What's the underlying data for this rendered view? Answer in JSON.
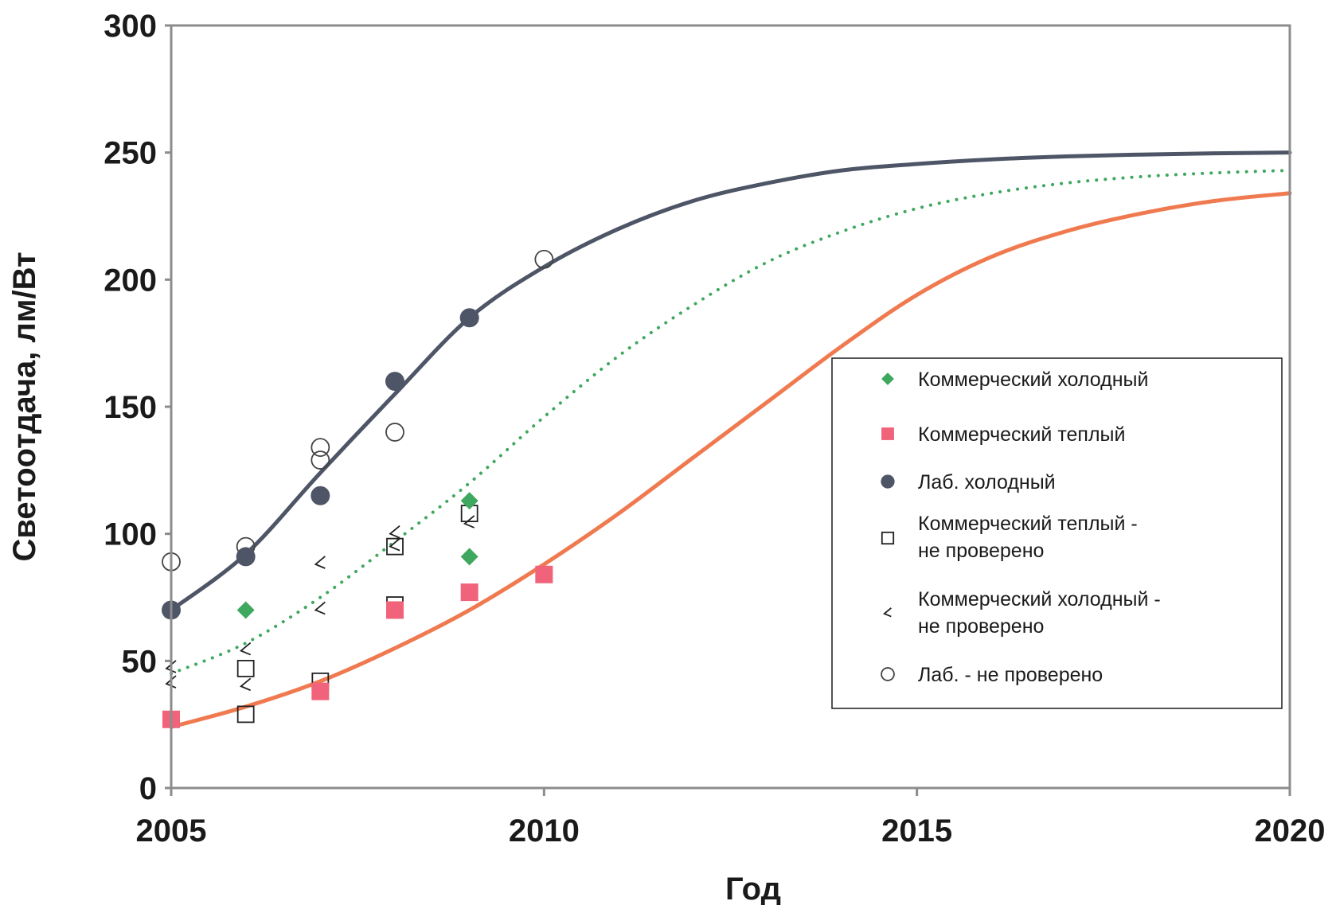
{
  "chart_data": {
    "type": "scatter",
    "title": "",
    "xlabel": "Год",
    "ylabel": "Светоотдача, лм/Вт",
    "xlim": [
      2005,
      2020
    ],
    "ylim": [
      0,
      300
    ],
    "x_ticks": [
      "2005",
      "2010",
      "2015",
      "2020"
    ],
    "y_ticks": [
      "0",
      "50",
      "100",
      "150",
      "200",
      "250",
      "300"
    ],
    "grid": false,
    "legend_position": "right",
    "series": [
      {
        "name": "Коммерческий холодный",
        "type": "scatter",
        "marker": "diamond-filled",
        "color": "#3fa85f",
        "points": [
          [
            2006,
            70
          ],
          [
            2009,
            113
          ],
          [
            2009,
            91
          ]
        ]
      },
      {
        "name": "Коммерческий теплый",
        "type": "scatter",
        "marker": "square-filled",
        "color": "#f0637a",
        "points": [
          [
            2005,
            27
          ],
          [
            2007,
            38
          ],
          [
            2008,
            70
          ],
          [
            2009,
            77
          ],
          [
            2010,
            84
          ]
        ]
      },
      {
        "name": "Лаб. холодный",
        "type": "scatter",
        "marker": "circle-filled",
        "color": "#4e5566",
        "points": [
          [
            2005,
            70
          ],
          [
            2006,
            91
          ],
          [
            2007,
            115
          ],
          [
            2008,
            160
          ],
          [
            2009,
            185
          ]
        ]
      },
      {
        "name": "Коммерческий теплый -\nне проверено",
        "type": "scatter",
        "marker": "square-open",
        "color": "#1a1a1a",
        "points": [
          [
            2006,
            47
          ],
          [
            2006,
            29
          ],
          [
            2007,
            42
          ],
          [
            2008,
            95
          ],
          [
            2008,
            72
          ],
          [
            2009,
            108
          ]
        ]
      },
      {
        "name": "Коммерческий холодный -\nне проверено",
        "type": "scatter",
        "marker": "chevron-open",
        "color": "#1a1a1a",
        "points": [
          [
            2005,
            47
          ],
          [
            2005,
            41
          ],
          [
            2006,
            54
          ],
          [
            2006,
            40
          ],
          [
            2007,
            88
          ],
          [
            2007,
            70
          ],
          [
            2008,
            100
          ],
          [
            2008,
            95
          ],
          [
            2009,
            104
          ]
        ]
      },
      {
        "name": "Лаб. - не проверено",
        "type": "scatter",
        "marker": "circle-open",
        "color": "#1a1a1a",
        "points": [
          [
            2005,
            89
          ],
          [
            2006,
            95
          ],
          [
            2007,
            134
          ],
          [
            2007,
            129
          ],
          [
            2008,
            140
          ],
          [
            2010,
            208
          ]
        ]
      }
    ],
    "trend_lines": [
      {
        "color": "#4e5566",
        "style": "solid",
        "points": [
          [
            2005,
            70
          ],
          [
            2006,
            92
          ],
          [
            2007,
            124
          ],
          [
            2008,
            155
          ],
          [
            2009,
            185
          ],
          [
            2010,
            205
          ],
          [
            2011,
            220
          ],
          [
            2012,
            231
          ],
          [
            2013,
            238
          ],
          [
            2014,
            243
          ],
          [
            2015,
            245.5
          ],
          [
            2016,
            247.3
          ],
          [
            2017,
            248.5
          ],
          [
            2018,
            249.2
          ],
          [
            2019,
            249.7
          ],
          [
            2020,
            250
          ]
        ]
      },
      {
        "color": "#3fa85f",
        "style": "dotted",
        "points": [
          [
            2005,
            45
          ],
          [
            2006,
            57
          ],
          [
            2007,
            75
          ],
          [
            2008,
            97
          ],
          [
            2009,
            120
          ],
          [
            2010,
            146
          ],
          [
            2011,
            170
          ],
          [
            2012,
            190
          ],
          [
            2013,
            207
          ],
          [
            2014,
            219
          ],
          [
            2015,
            228
          ],
          [
            2016,
            234
          ],
          [
            2017,
            238
          ],
          [
            2018,
            240.5
          ],
          [
            2019,
            242
          ],
          [
            2020,
            243
          ]
        ]
      },
      {
        "color": "#f07a50",
        "style": "solid",
        "points": [
          [
            2005,
            24
          ],
          [
            2006,
            32
          ],
          [
            2007,
            42
          ],
          [
            2008,
            55
          ],
          [
            2009,
            70
          ],
          [
            2010,
            88
          ],
          [
            2011,
            108
          ],
          [
            2012,
            130
          ],
          [
            2013,
            152
          ],
          [
            2014,
            174
          ],
          [
            2015,
            194
          ],
          [
            2016,
            209
          ],
          [
            2017,
            219
          ],
          [
            2018,
            226
          ],
          [
            2019,
            231
          ],
          [
            2020,
            234
          ]
        ]
      }
    ]
  }
}
